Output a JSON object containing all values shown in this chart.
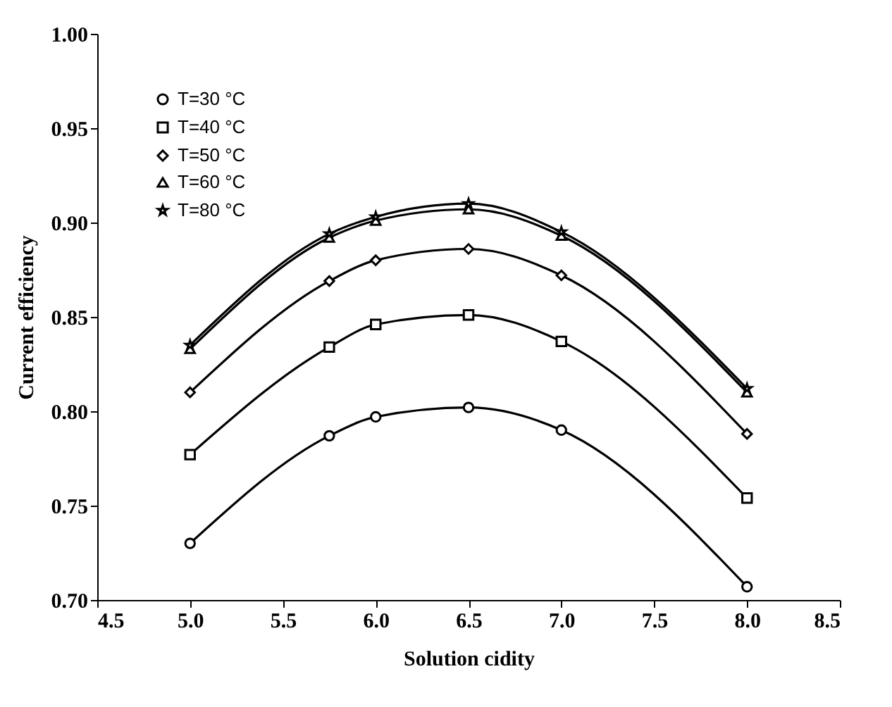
{
  "chart_data": {
    "type": "line",
    "xlabel": "Solution cidity",
    "ylabel": "Current efficiency",
    "x": [
      5.0,
      5.75,
      6.0,
      6.5,
      7.0,
      8.0
    ],
    "xlim": [
      4.5,
      8.5
    ],
    "xticks": [
      {
        "value": 4.5,
        "label": "4.5"
      },
      {
        "value": 5,
        "label": "5.0"
      },
      {
        "value": 5.5,
        "label": "5.5"
      },
      {
        "value": 6,
        "label": "6.0"
      },
      {
        "value": 6.5,
        "label": "6.5"
      },
      {
        "value": 7,
        "label": "7.0"
      },
      {
        "value": 7.5,
        "label": "7.5"
      },
      {
        "value": 8,
        "label": "8.0"
      },
      {
        "value": 8.5,
        "label": "8.5"
      }
    ],
    "ylim": [
      0.7,
      1.0
    ],
    "yticks": [
      {
        "value": 0.7,
        "label": "0.70"
      },
      {
        "value": 0.75,
        "label": "0.75"
      },
      {
        "value": 0.8,
        "label": "0.80"
      },
      {
        "value": 0.85,
        "label": "0.85"
      },
      {
        "value": 0.9,
        "label": "0.90"
      },
      {
        "value": 0.95,
        "label": "0.95"
      },
      {
        "value": 1.0,
        "label": "1.00"
      }
    ],
    "grid": false,
    "legend": "top left",
    "line_style": "solid",
    "series": [
      {
        "name": "T=30 °C",
        "color": "#000000",
        "marker": "circle",
        "values": [
          0.73,
          0.787,
          0.797,
          0.802,
          0.79,
          0.707
        ]
      },
      {
        "name": "T=40 °C",
        "color": "#000000",
        "marker": "square",
        "values": [
          0.777,
          0.834,
          0.846,
          0.851,
          0.837,
          0.754
        ]
      },
      {
        "name": "T=50 °C",
        "color": "#000000",
        "marker": "diamond",
        "values": [
          0.81,
          0.869,
          0.88,
          0.886,
          0.872,
          0.788
        ]
      },
      {
        "name": "T=60 °C",
        "color": "#000000",
        "marker": "triangle",
        "values": [
          0.833,
          0.892,
          0.901,
          0.907,
          0.893,
          0.81
        ]
      },
      {
        "name": "T=80 °C",
        "color": "#000000",
        "marker": "star",
        "values": [
          0.835,
          0.894,
          0.903,
          0.91,
          0.895,
          0.812
        ]
      }
    ]
  }
}
